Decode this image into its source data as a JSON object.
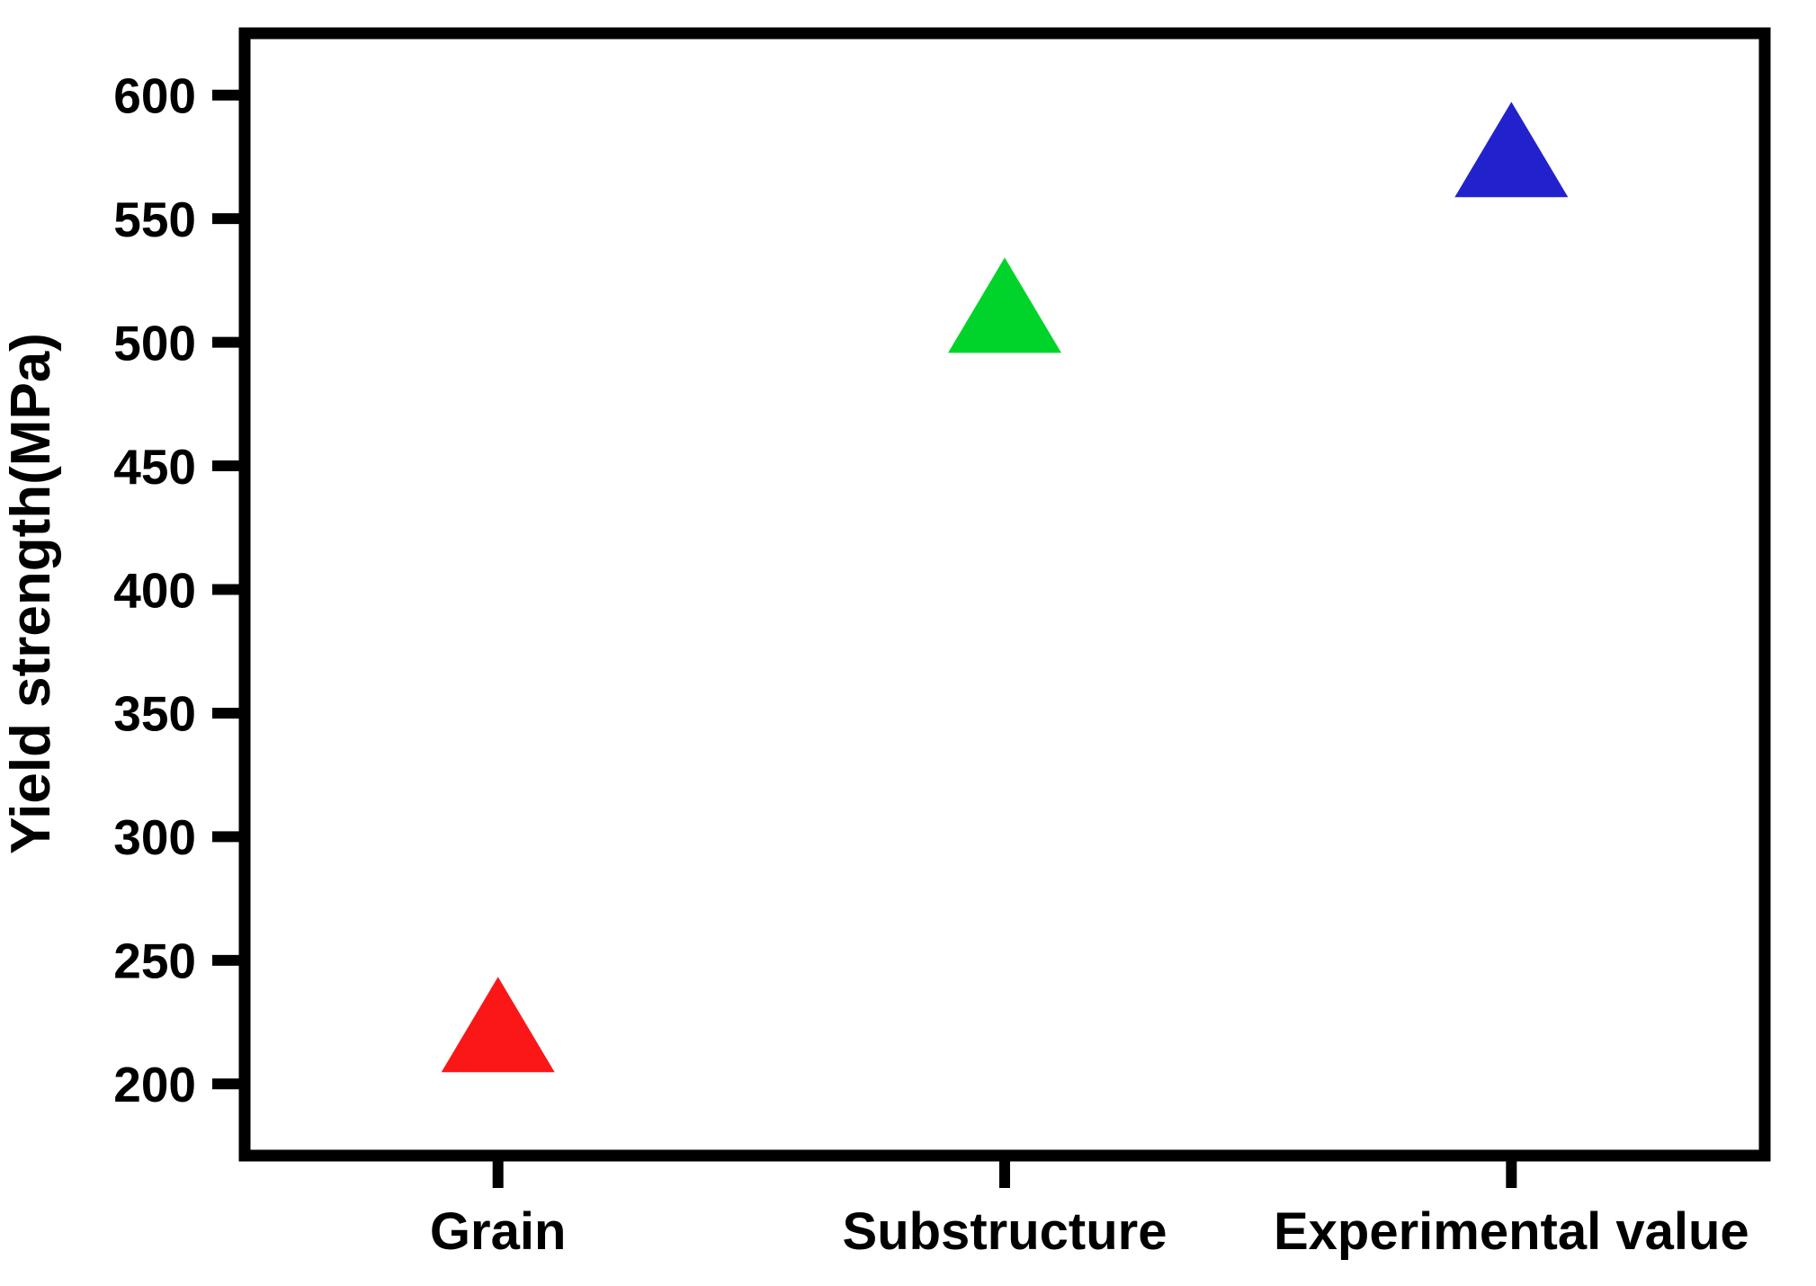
{
  "figure": {
    "background": "#ffffff",
    "axis_color": "#000000"
  },
  "chart_data": {
    "type": "scatter",
    "marker": "triangle-up",
    "title": "",
    "xlabel": "",
    "ylabel": "Yield strength(MPa)",
    "categories": [
      "Grain",
      "Substructure",
      "Experimental value"
    ],
    "series": [
      {
        "name": "Yield strength",
        "values": [
          224,
          515,
          578
        ]
      }
    ],
    "point_colors": [
      "#fb1717",
      "#00d42a",
      "#2222cd"
    ],
    "yticks": [
      200,
      250,
      300,
      350,
      400,
      450,
      500,
      550,
      600
    ],
    "ylim": [
      171,
      625
    ],
    "grid": false,
    "legend": false,
    "frame": "box",
    "tick_direction": "out"
  }
}
